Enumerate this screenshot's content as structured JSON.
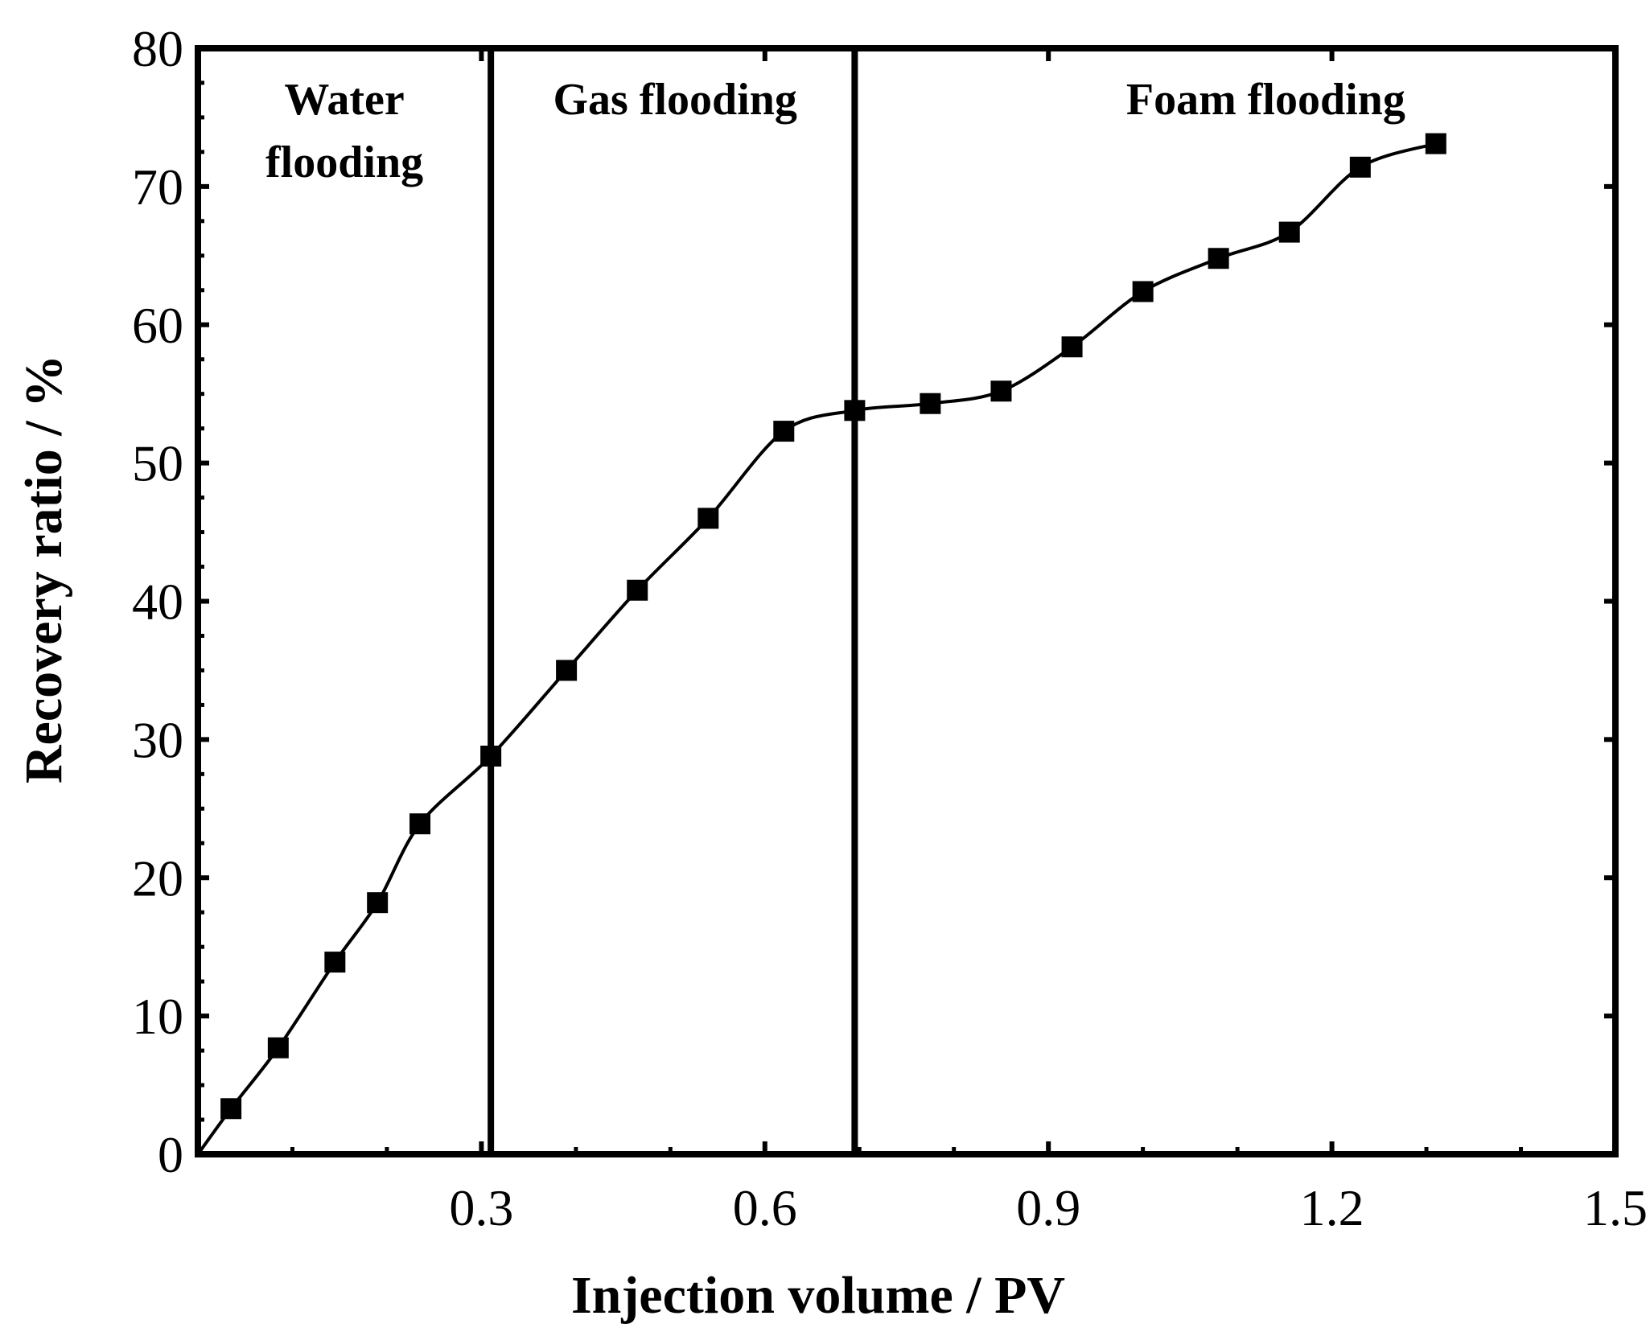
{
  "chart_data": {
    "type": "line",
    "title": "",
    "xlabel": "Injection volume / PV",
    "ylabel": "Recovery ratio / %",
    "xlim": [
      0,
      1.5
    ],
    "ylim": [
      0,
      80
    ],
    "grid": false,
    "x_ticks": [
      0.3,
      0.6,
      0.9,
      1.2,
      1.5
    ],
    "x_tick_labels": [
      "0.3",
      "0.6",
      "0.9",
      "1.2",
      "1.5"
    ],
    "y_ticks": [
      0,
      10,
      20,
      30,
      40,
      50,
      60,
      70,
      80
    ],
    "y_tick_labels": [
      "0",
      "10",
      "20",
      "30",
      "40",
      "50",
      "60",
      "70",
      "80"
    ],
    "phase_dividers": [
      0.31,
      0.695
    ],
    "regions": [
      {
        "lines": [
          "Water",
          "flooding"
        ],
        "x_center": 0.155
      },
      {
        "lines": [
          "Gas flooding"
        ],
        "x_center": 0.505
      },
      {
        "lines": [
          "Foam flooding"
        ],
        "x_center": 1.13
      }
    ],
    "series": [
      {
        "name": "Recovery ratio",
        "marker": "square",
        "color": "#000000",
        "x": [
          0.035,
          0.085,
          0.145,
          0.19,
          0.235,
          0.31,
          0.39,
          0.465,
          0.54,
          0.62,
          0.695,
          0.775,
          0.85,
          0.925,
          1.0,
          1.08,
          1.155,
          1.23,
          1.31
        ],
        "y": [
          3.3,
          7.7,
          13.9,
          18.2,
          23.9,
          28.8,
          35.0,
          40.8,
          46.0,
          52.3,
          53.8,
          54.3,
          55.2,
          58.4,
          62.4,
          64.8,
          66.7,
          71.4,
          73.1
        ]
      }
    ]
  }
}
